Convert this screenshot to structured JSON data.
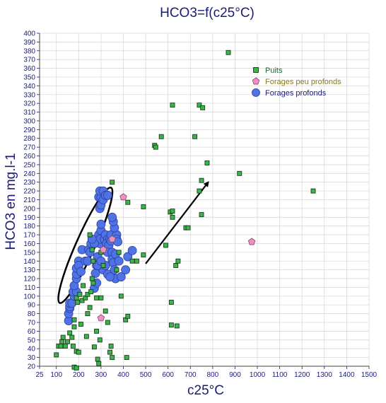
{
  "chart_data": {
    "type": "scatter",
    "title": "HCO3=f(c25°C)",
    "xlabel": "c25°C",
    "ylabel": "HCO3 en mg.l-1",
    "xlim": [
      25,
      1500
    ],
    "ylim": [
      20,
      400
    ],
    "x_ticks": [
      "25",
      "100",
      "200",
      "300",
      "400",
      "500",
      "600",
      "700",
      "800",
      "900",
      "1000",
      "1100",
      "1200",
      "1300",
      "1400",
      "1500"
    ],
    "y_ticks": [
      "20",
      "30",
      "40",
      "50",
      "60",
      "70",
      "80",
      "90",
      "100",
      "110",
      "120",
      "130",
      "140",
      "150",
      "160",
      "170",
      "180",
      "190",
      "200",
      "210",
      "220",
      "230",
      "240",
      "250",
      "260",
      "270",
      "280",
      "290",
      "300",
      "310",
      "320",
      "330",
      "340",
      "350",
      "360",
      "370",
      "380",
      "390",
      "400"
    ],
    "grid": true,
    "legend_position": "top-right",
    "series": [
      {
        "name": "Puits",
        "marker": "square",
        "color": "#3cb44b",
        "points": [
          [
            100,
            33
          ],
          [
            110,
            43
          ],
          [
            120,
            43
          ],
          [
            125,
            48
          ],
          [
            130,
            53
          ],
          [
            140,
            43
          ],
          [
            150,
            48
          ],
          [
            160,
            58
          ],
          [
            170,
            53
          ],
          [
            175,
            43
          ],
          [
            180,
            19
          ],
          [
            190,
            18
          ],
          [
            190,
            37
          ],
          [
            200,
            36
          ],
          [
            180,
            65
          ],
          [
            210,
            68
          ],
          [
            180,
            73
          ],
          [
            195,
            93
          ],
          [
            190,
            98
          ],
          [
            205,
            102
          ],
          [
            215,
            95
          ],
          [
            220,
            112
          ],
          [
            230,
            98
          ],
          [
            240,
            102
          ],
          [
            235,
            54
          ],
          [
            240,
            80
          ],
          [
            250,
            87
          ],
          [
            255,
            105
          ],
          [
            260,
            120
          ],
          [
            265,
            115
          ],
          [
            260,
            153
          ],
          [
            265,
            140
          ],
          [
            250,
            170
          ],
          [
            270,
            42
          ],
          [
            280,
            60
          ],
          [
            280,
            98
          ],
          [
            285,
            28
          ],
          [
            290,
            23
          ],
          [
            295,
            50
          ],
          [
            300,
            98
          ],
          [
            300,
            150
          ],
          [
            310,
            135
          ],
          [
            320,
            83
          ],
          [
            330,
            70
          ],
          [
            340,
            36
          ],
          [
            345,
            43
          ],
          [
            350,
            30
          ],
          [
            350,
            230
          ],
          [
            370,
            130
          ],
          [
            380,
            150
          ],
          [
            390,
            100
          ],
          [
            410,
            73
          ],
          [
            415,
            30
          ],
          [
            420,
            77
          ],
          [
            420,
            207
          ],
          [
            440,
            140
          ],
          [
            460,
            140
          ],
          [
            490,
            147
          ],
          [
            490,
            202
          ],
          [
            540,
            272
          ],
          [
            545,
            270
          ],
          [
            570,
            282
          ],
          [
            590,
            158
          ],
          [
            610,
            196
          ],
          [
            615,
            67
          ],
          [
            615,
            93
          ],
          [
            620,
            318
          ],
          [
            620,
            190
          ],
          [
            620,
            197
          ],
          [
            640,
            66
          ],
          [
            635,
            135
          ],
          [
            645,
            140
          ],
          [
            680,
            178
          ],
          [
            690,
            178
          ],
          [
            720,
            282
          ],
          [
            740,
            220
          ],
          [
            740,
            318
          ],
          [
            750,
            193
          ],
          [
            750,
            232
          ],
          [
            755,
            315
          ],
          [
            775,
            252
          ],
          [
            870,
            378
          ],
          [
            920,
            240
          ],
          [
            1250,
            220
          ]
        ]
      },
      {
        "name": "Forages peu profonds",
        "marker": "pentagon",
        "color": "#f08fc0",
        "points": [
          [
            300,
            75
          ],
          [
            310,
            153
          ],
          [
            350,
            165
          ],
          [
            400,
            213
          ],
          [
            975,
            162
          ]
        ]
      },
      {
        "name": "Forages profonds",
        "marker": "circle",
        "color": "#4f73e6",
        "points": [
          [
            155,
            72
          ],
          [
            155,
            80
          ],
          [
            160,
            86
          ],
          [
            160,
            88
          ],
          [
            160,
            92
          ],
          [
            170,
            92
          ],
          [
            180,
            100
          ],
          [
            175,
            105
          ],
          [
            190,
            105
          ],
          [
            180,
            112
          ],
          [
            190,
            120
          ],
          [
            190,
            125
          ],
          [
            190,
            132
          ],
          [
            200,
            140
          ],
          [
            200,
            135
          ],
          [
            210,
            128
          ],
          [
            215,
            153
          ],
          [
            230,
            140
          ],
          [
            240,
            140
          ],
          [
            245,
            153
          ],
          [
            255,
            160
          ],
          [
            270,
            109
          ],
          [
            280,
            115
          ],
          [
            275,
            126
          ],
          [
            280,
            135
          ],
          [
            285,
            145
          ],
          [
            290,
            170
          ],
          [
            295,
            160
          ],
          [
            295,
            165
          ],
          [
            300,
            175
          ],
          [
            300,
            182
          ],
          [
            295,
            200
          ],
          [
            300,
            204
          ],
          [
            290,
            213
          ],
          [
            300,
            213
          ],
          [
            295,
            220
          ],
          [
            310,
            220
          ],
          [
            310,
            210
          ],
          [
            320,
            215
          ],
          [
            330,
            215
          ],
          [
            315,
            165
          ],
          [
            320,
            170
          ],
          [
            330,
            165
          ],
          [
            325,
            160
          ],
          [
            335,
            158
          ],
          [
            330,
            150
          ],
          [
            340,
            165
          ],
          [
            345,
            163
          ],
          [
            345,
            170
          ],
          [
            350,
            150
          ],
          [
            350,
            142
          ],
          [
            355,
            138
          ],
          [
            360,
            130
          ],
          [
            365,
            120
          ],
          [
            370,
            170
          ],
          [
            370,
            165
          ],
          [
            375,
            162
          ],
          [
            365,
            148
          ],
          [
            360,
            178
          ],
          [
            355,
            185
          ],
          [
            350,
            190
          ],
          [
            310,
            130
          ],
          [
            320,
            135
          ],
          [
            330,
            125
          ],
          [
            340,
            122
          ],
          [
            380,
            140
          ],
          [
            390,
            122
          ],
          [
            410,
            130
          ],
          [
            420,
            145
          ],
          [
            440,
            152
          ],
          [
            270,
            160
          ],
          [
            260,
            165
          ],
          [
            250,
            150
          ],
          [
            285,
            135
          ],
          [
            300,
            140
          ]
        ]
      }
    ],
    "annotations": [
      {
        "type": "ellipse",
        "center": [
          230,
          158
        ],
        "rx_data": 42,
        "ry_data": 72,
        "rotate_deg": 24
      },
      {
        "type": "arrow",
        "from": [
          500,
          137
        ],
        "to": [
          780,
          230
        ]
      }
    ]
  }
}
